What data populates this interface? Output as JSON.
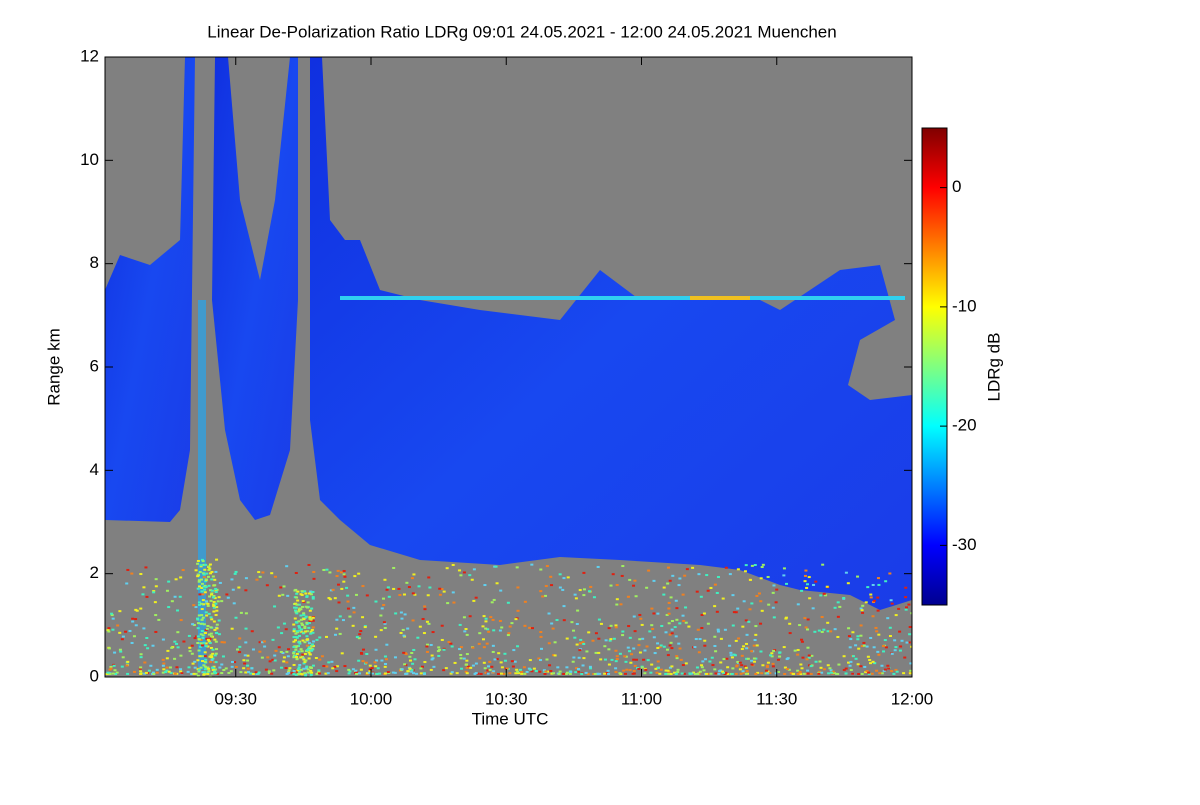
{
  "chart_data": {
    "type": "heatmap",
    "title": "Linear De-Polarization Ratio LDRg   09:01 24.05.2021 - 12:00 24.05.2021 Muenchen",
    "x_label": "Time UTC",
    "y_label": "Range km",
    "colorbar_label": "LDRg dB",
    "xlim": [
      541,
      720
    ],
    "xticks": [
      {
        "value": 570,
        "label": "09:30"
      },
      {
        "value": 600,
        "label": "10:00"
      },
      {
        "value": 630,
        "label": "10:30"
      },
      {
        "value": 660,
        "label": "11:00"
      },
      {
        "value": 690,
        "label": "11:30"
      },
      {
        "value": 720,
        "label": "12:00"
      }
    ],
    "ylim": [
      0,
      12
    ],
    "yticks": [
      0,
      2,
      4,
      6,
      8,
      10,
      12
    ],
    "clim": [
      -35,
      5
    ],
    "cticks": [
      0,
      -10,
      -20,
      -30
    ],
    "colormap": "jet"
  }
}
